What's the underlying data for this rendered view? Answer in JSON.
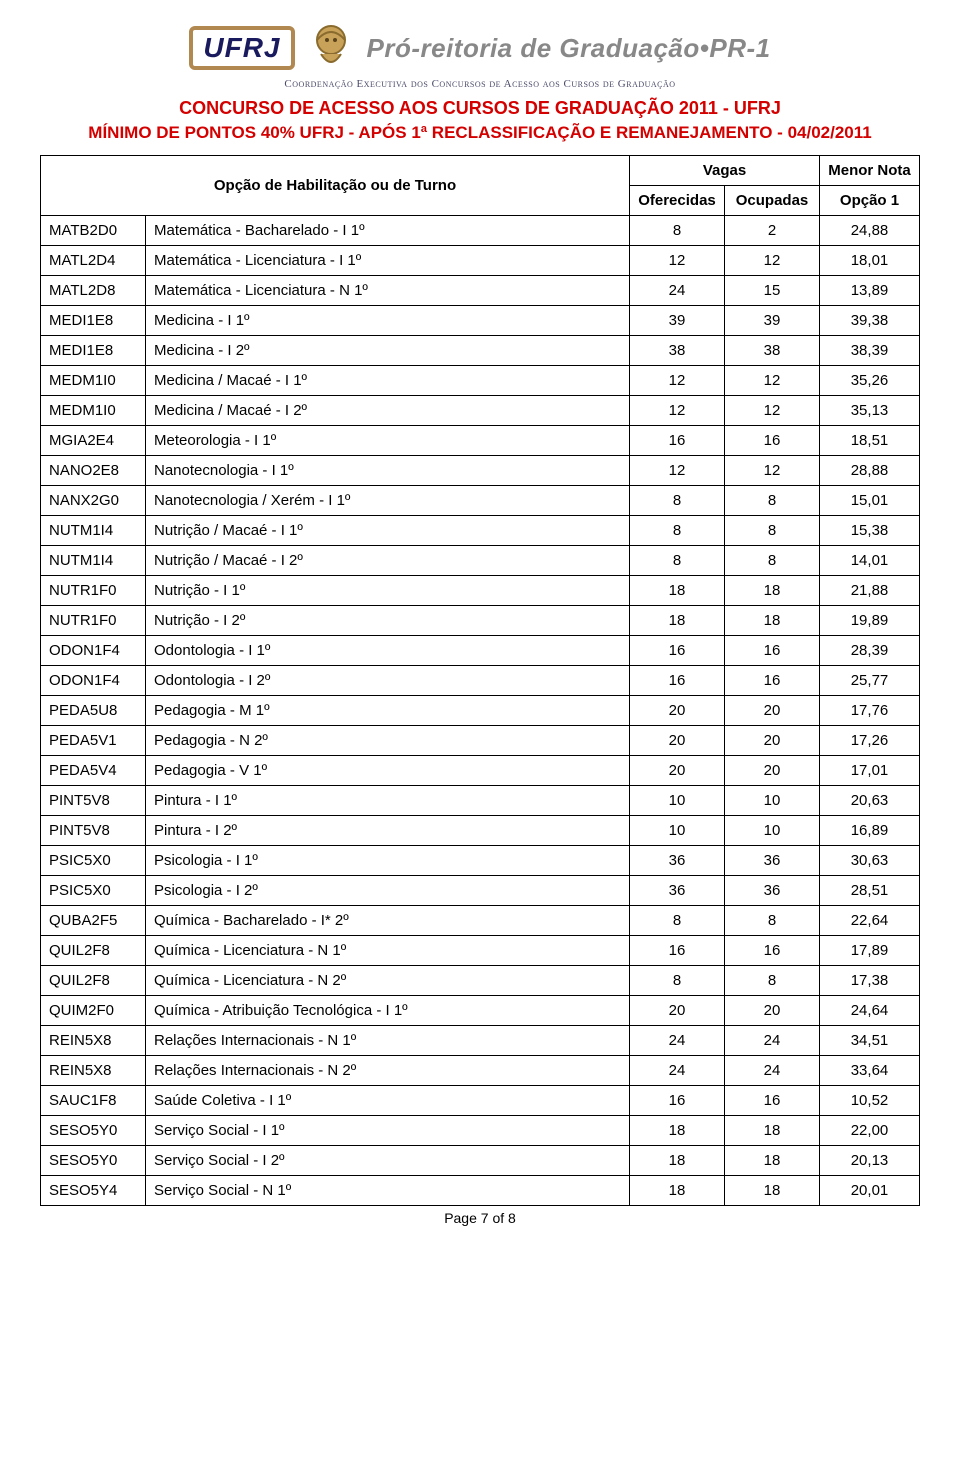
{
  "header": {
    "ufrj": "UFRJ",
    "grad_title": "Pró-reitoria de Graduação•PR-1",
    "coord_sub": "Coordenação Executiva dos Concursos de Acesso aos Cursos de Graduação",
    "red_line1": "CONCURSO DE ACESSO AOS CURSOS DE GRADUAÇÃO 2011 - UFRJ",
    "red_line2": "MÍNIMO DE PONTOS 40% UFRJ - APÓS 1ª RECLASSIFICAÇÃO E REMANEJAMENTO - 04/02/2011"
  },
  "table": {
    "headers": {
      "opcao": "Opção de Habilitação ou de Turno",
      "vagas": "Vagas",
      "oferecidas": "Oferecidas",
      "ocupadas": "Ocupadas",
      "menor_nota": "Menor Nota",
      "opcao1": "Opção 1"
    },
    "rows": [
      {
        "code": "MATB2D0",
        "desc": "Matemática - Bacharelado - I 1º",
        "ofer": "8",
        "ocup": "2",
        "nota": "24,88"
      },
      {
        "code": "MATL2D4",
        "desc": "Matemática - Licenciatura - I 1º",
        "ofer": "12",
        "ocup": "12",
        "nota": "18,01"
      },
      {
        "code": "MATL2D8",
        "desc": "Matemática - Licenciatura - N 1º",
        "ofer": "24",
        "ocup": "15",
        "nota": "13,89"
      },
      {
        "code": "MEDI1E8",
        "desc": "Medicina - I 1º",
        "ofer": "39",
        "ocup": "39",
        "nota": "39,38"
      },
      {
        "code": "MEDI1E8",
        "desc": "Medicina - I 2º",
        "ofer": "38",
        "ocup": "38",
        "nota": "38,39"
      },
      {
        "code": "MEDM1I0",
        "desc": "Medicina / Macaé - I 1º",
        "ofer": "12",
        "ocup": "12",
        "nota": "35,26"
      },
      {
        "code": "MEDM1I0",
        "desc": "Medicina / Macaé - I 2º",
        "ofer": "12",
        "ocup": "12",
        "nota": "35,13"
      },
      {
        "code": "MGIA2E4",
        "desc": "Meteorologia - I 1º",
        "ofer": "16",
        "ocup": "16",
        "nota": "18,51"
      },
      {
        "code": "NANO2E8",
        "desc": "Nanotecnologia - I 1º",
        "ofer": "12",
        "ocup": "12",
        "nota": "28,88"
      },
      {
        "code": "NANX2G0",
        "desc": "Nanotecnologia / Xerém - I 1º",
        "ofer": "8",
        "ocup": "8",
        "nota": "15,01"
      },
      {
        "code": "NUTM1I4",
        "desc": "Nutrição / Macaé - I 1º",
        "ofer": "8",
        "ocup": "8",
        "nota": "15,38"
      },
      {
        "code": "NUTM1I4",
        "desc": "Nutrição / Macaé - I 2º",
        "ofer": "8",
        "ocup": "8",
        "nota": "14,01"
      },
      {
        "code": "NUTR1F0",
        "desc": "Nutrição - I 1º",
        "ofer": "18",
        "ocup": "18",
        "nota": "21,88"
      },
      {
        "code": "NUTR1F0",
        "desc": "Nutrição - I 2º",
        "ofer": "18",
        "ocup": "18",
        "nota": "19,89"
      },
      {
        "code": "ODON1F4",
        "desc": "Odontologia - I 1º",
        "ofer": "16",
        "ocup": "16",
        "nota": "28,39"
      },
      {
        "code": "ODON1F4",
        "desc": "Odontologia - I 2º",
        "ofer": "16",
        "ocup": "16",
        "nota": "25,77"
      },
      {
        "code": "PEDA5U8",
        "desc": "Pedagogia - M 1º",
        "ofer": "20",
        "ocup": "20",
        "nota": "17,76"
      },
      {
        "code": "PEDA5V1",
        "desc": "Pedagogia - N 2º",
        "ofer": "20",
        "ocup": "20",
        "nota": "17,26"
      },
      {
        "code": "PEDA5V4",
        "desc": "Pedagogia - V 1º",
        "ofer": "20",
        "ocup": "20",
        "nota": "17,01"
      },
      {
        "code": "PINT5V8",
        "desc": "Pintura - I 1º",
        "ofer": "10",
        "ocup": "10",
        "nota": "20,63"
      },
      {
        "code": "PINT5V8",
        "desc": "Pintura - I 2º",
        "ofer": "10",
        "ocup": "10",
        "nota": "16,89"
      },
      {
        "code": "PSIC5X0",
        "desc": "Psicologia - I 1º",
        "ofer": "36",
        "ocup": "36",
        "nota": "30,63"
      },
      {
        "code": "PSIC5X0",
        "desc": "Psicologia - I 2º",
        "ofer": "36",
        "ocup": "36",
        "nota": "28,51"
      },
      {
        "code": "QUBA2F5",
        "desc": "Química - Bacharelado - I* 2º",
        "ofer": "8",
        "ocup": "8",
        "nota": "22,64"
      },
      {
        "code": "QUIL2F8",
        "desc": "Química - Licenciatura - N 1º",
        "ofer": "16",
        "ocup": "16",
        "nota": "17,89"
      },
      {
        "code": "QUIL2F8",
        "desc": "Química - Licenciatura - N 2º",
        "ofer": "8",
        "ocup": "8",
        "nota": "17,38"
      },
      {
        "code": "QUIM2F0",
        "desc": "Química - Atribuição Tecnológica - I 1º",
        "ofer": "20",
        "ocup": "20",
        "nota": "24,64"
      },
      {
        "code": "REIN5X8",
        "desc": "Relações Internacionais - N 1º",
        "ofer": "24",
        "ocup": "24",
        "nota": "34,51"
      },
      {
        "code": "REIN5X8",
        "desc": "Relações Internacionais - N 2º",
        "ofer": "24",
        "ocup": "24",
        "nota": "33,64"
      },
      {
        "code": "SAUC1F8",
        "desc": "Saúde Coletiva - I 1º",
        "ofer": "16",
        "ocup": "16",
        "nota": "10,52"
      },
      {
        "code": "SESO5Y0",
        "desc": "Serviço Social - I 1º",
        "ofer": "18",
        "ocup": "18",
        "nota": "22,00"
      },
      {
        "code": "SESO5Y0",
        "desc": "Serviço Social - I 2º",
        "ofer": "18",
        "ocup": "18",
        "nota": "20,13"
      },
      {
        "code": "SESO5Y4",
        "desc": "Serviço Social - N 1º",
        "ofer": "18",
        "ocup": "18",
        "nota": "20,01"
      }
    ]
  },
  "footer": {
    "page": "Page 7 of 8"
  },
  "style": {
    "red": "#d40000",
    "text": "#000000",
    "border": "#000000",
    "bg": "#ffffff"
  }
}
